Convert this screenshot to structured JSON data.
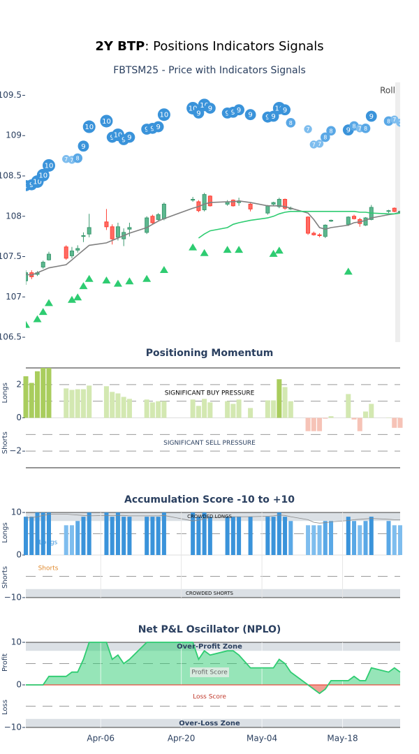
{
  "title": {
    "bold": "2Y BTP",
    "rest": ": Positions Indicators Signals"
  },
  "chart_data": [
    {
      "type": "candlestick",
      "title": "FBTSM25 - Price with Indicators Signals",
      "x": [
        "Mar-24",
        "Mar-25",
        "Mar-26",
        "Mar-27",
        "Mar-28",
        "Mar-31",
        "Apr-01",
        "Apr-02",
        "Apr-03",
        "Apr-04",
        "Apr-07",
        "Apr-08",
        "Apr-09",
        "Apr-10",
        "Apr-11",
        "Apr-14",
        "Apr-15",
        "Apr-16",
        "Apr-17",
        "Apr-22",
        "Apr-23",
        "Apr-24",
        "Apr-25",
        "Apr-28",
        "Apr-29",
        "Apr-30",
        "May-02",
        "May-05",
        "May-06",
        "May-07",
        "May-08",
        "May-09",
        "May-12",
        "May-13",
        "May-14",
        "May-15",
        "May-16",
        "May-19",
        "May-20",
        "May-21",
        "May-22",
        "May-23",
        "May-26",
        "May-27",
        "May-28"
      ],
      "open": [
        107.2,
        107.3,
        107.28,
        107.37,
        107.46,
        107.62,
        107.51,
        107.58,
        107.75,
        107.78,
        107.93,
        107.87,
        107.74,
        107.72,
        107.84,
        107.8,
        108.0,
        107.96,
        107.97,
        108.2,
        108.18,
        108.08,
        108.25,
        108.15,
        108.2,
        108.17,
        108.15,
        108.04,
        108.15,
        108.12,
        108.21,
        108.09,
        107.99,
        107.79,
        107.77,
        107.75,
        107.94,
        107.9,
        108.0,
        107.96,
        107.89,
        107.96,
        108.06,
        108.1,
        108.05
      ],
      "high": [
        107.33,
        107.33,
        107.32,
        107.45,
        107.56,
        107.64,
        107.62,
        107.64,
        107.8,
        108.03,
        108.09,
        107.9,
        107.92,
        107.85,
        107.92,
        108.0,
        108.02,
        108.04,
        108.17,
        108.24,
        108.2,
        108.29,
        108.26,
        108.2,
        108.21,
        108.23,
        108.17,
        108.14,
        108.18,
        108.23,
        108.22,
        108.12,
        108.0,
        107.81,
        107.79,
        107.9,
        107.96,
        108.0,
        108.02,
        107.98,
        107.99,
        108.14,
        108.08,
        108.11,
        108.07
      ],
      "low": [
        107.15,
        107.22,
        107.26,
        107.35,
        107.45,
        107.46,
        107.48,
        107.55,
        107.68,
        107.74,
        107.83,
        107.65,
        107.7,
        107.63,
        107.75,
        107.78,
        107.9,
        107.94,
        107.95,
        108.18,
        108.05,
        108.06,
        108.12,
        108.13,
        108.12,
        108.13,
        108.06,
        108.02,
        108.13,
        108.1,
        108.08,
        108.08,
        107.77,
        107.76,
        107.74,
        107.73,
        107.93,
        107.88,
        107.96,
        107.87,
        107.88,
        107.95,
        108.04,
        108.05,
        108.04
      ],
      "close": [
        107.3,
        107.25,
        107.3,
        107.43,
        107.53,
        107.48,
        107.57,
        107.6,
        107.76,
        107.86,
        107.87,
        107.72,
        107.87,
        107.8,
        107.86,
        107.98,
        107.92,
        108.02,
        108.15,
        108.21,
        108.07,
        108.27,
        108.13,
        108.18,
        108.13,
        108.19,
        108.09,
        108.13,
        108.17,
        108.21,
        108.1,
        108.1,
        107.79,
        107.77,
        107.76,
        107.89,
        107.95,
        107.99,
        107.97,
        107.91,
        107.98,
        108.11,
        108.07,
        108.06,
        108.06
      ],
      "increasing_color": "#3d9970",
      "decreasing_color": "#ff4136",
      "lines": [
        {
          "color": "#808080",
          "values": [
            107.28,
            107.27,
            107.3,
            107.33,
            107.36,
            107.4,
            107.46,
            107.52,
            107.58,
            107.64,
            107.67,
            107.7,
            107.73,
            107.76,
            107.79,
            107.86,
            107.9,
            107.94,
            107.97,
            108.1,
            108.12,
            108.15,
            108.17,
            108.18,
            108.18,
            108.19,
            108.17,
            108.13,
            108.13,
            108.13,
            108.12,
            108.1,
            108.04,
            107.96,
            107.86,
            107.84,
            107.86,
            107.89,
            107.92,
            107.93,
            107.95,
            107.98,
            108.02,
            108.03,
            108.05
          ]
        },
        {
          "color": "#2ecc71",
          "values": [
            null,
            null,
            null,
            null,
            null,
            null,
            null,
            null,
            null,
            null,
            null,
            null,
            null,
            null,
            null,
            null,
            null,
            null,
            null,
            null,
            107.73,
            107.78,
            107.82,
            107.86,
            107.9,
            107.92,
            107.95,
            107.98,
            108.0,
            108.03,
            108.05,
            108.06,
            108.06,
            108.06,
            108.06,
            108.06,
            108.06,
            108.06,
            108.06,
            108.05,
            108.05,
            108.04,
            108.03,
            108.03,
            108.04
          ]
        }
      ],
      "bubbles": {
        "values": [
          108.38,
          108.39,
          108.43,
          108.51,
          108.63,
          108.71,
          108.7,
          108.72,
          108.87,
          109.11,
          109.18,
          108.98,
          109.01,
          108.95,
          108.98,
          109.08,
          109.09,
          109.11,
          109.26,
          109.34,
          109.28,
          109.38,
          109.34,
          109.28,
          109.29,
          109.32,
          109.26,
          109.23,
          109.24,
          109.34,
          109.32,
          109.16,
          109.08,
          108.89,
          108.9,
          108.98,
          109.06,
          109.07,
          109.12,
          109.09,
          109.09,
          109.24,
          109.18,
          109.2,
          109.16
        ],
        "size": [
          9,
          9,
          10,
          10,
          10,
          7,
          7,
          8,
          9,
          10,
          10,
          9,
          10,
          9,
          9,
          9,
          9,
          9,
          10,
          10,
          9,
          10,
          9,
          9,
          9,
          9,
          9,
          9,
          9,
          10,
          9,
          8,
          7,
          7,
          7,
          8,
          8,
          9,
          8,
          7,
          8,
          9,
          8,
          7,
          7
        ],
        "colors": [
          "#3a93da",
          "#3a93da",
          "#3a93da",
          "#3a93da",
          "#3a93da",
          "#7ebdee",
          "#7ebdee",
          "#5aa8e6",
          "#3a93da",
          "#3a93da",
          "#3a93da",
          "#3a93da",
          "#3a93da",
          "#3a93da",
          "#3a93da",
          "#3a93da",
          "#3a93da",
          "#3a93da",
          "#3a93da",
          "#3a93da",
          "#3a93da",
          "#3a93da",
          "#3a93da",
          "#3a93da",
          "#3a93da",
          "#3a93da",
          "#3a93da",
          "#3a93da",
          "#3a93da",
          "#3a93da",
          "#3a93da",
          "#5aa8e6",
          "#7ebdee",
          "#7ebdee",
          "#7ebdee",
          "#5aa8e6",
          "#5aa8e6",
          "#3a93da",
          "#5aa8e6",
          "#7ebdee",
          "#5aa8e6",
          "#3a93da",
          "#5aa8e6",
          "#7ebdee",
          "#7ebdee"
        ]
      },
      "triangles": {
        "color": "#2ecc71",
        "values": [
          106.66,
          null,
          106.73,
          106.82,
          106.93,
          null,
          106.97,
          107.0,
          107.14,
          107.23,
          107.21,
          null,
          107.17,
          null,
          107.2,
          107.23,
          null,
          null,
          107.34,
          107.62,
          null,
          107.55,
          null,
          107.59,
          null,
          107.59,
          null,
          null,
          107.54,
          107.58,
          null,
          null,
          null,
          null,
          null,
          null,
          null,
          107.32,
          null,
          null,
          null,
          null,
          null,
          null,
          null
        ]
      },
      "annotation": {
        "text": "Roll",
        "x": "May-28"
      },
      "xlim": [
        "Mar-24",
        "May-28"
      ],
      "ylim": [
        106.44,
        109.66
      ],
      "yticks": [
        106.5,
        107,
        107.5,
        108,
        108.5,
        109,
        109.5
      ]
    },
    {
      "type": "bar",
      "title": "Positioning Momentum",
      "y_titles": [
        "Longs",
        "Shorts"
      ],
      "x": [
        "Mar-24",
        "Mar-25",
        "Mar-26",
        "Mar-27",
        "Mar-28",
        "Mar-31",
        "Apr-01",
        "Apr-02",
        "Apr-03",
        "Apr-04",
        "Apr-07",
        "Apr-08",
        "Apr-09",
        "Apr-10",
        "Apr-11",
        "Apr-14",
        "Apr-15",
        "Apr-16",
        "Apr-17",
        "Apr-22",
        "Apr-23",
        "Apr-24",
        "Apr-25",
        "Apr-28",
        "Apr-29",
        "Apr-30",
        "May-02",
        "May-05",
        "May-06",
        "May-07",
        "May-08",
        "May-09",
        "May-12",
        "May-13",
        "May-14",
        "May-15",
        "May-16",
        "May-19",
        "May-20",
        "May-21",
        "May-22",
        "May-23",
        "May-26",
        "May-27",
        "May-28"
      ],
      "values": [
        2.5,
        2.1,
        2.8,
        3.0,
        3.0,
        1.77,
        1.68,
        1.72,
        1.72,
        1.94,
        1.9,
        1.56,
        1.47,
        1.26,
        1.14,
        1.1,
        0.93,
        1.0,
        1.0,
        1.1,
        0.72,
        1.14,
        0.93,
        1.0,
        0.84,
        1.1,
        0.59,
        1.05,
        1.05,
        2.32,
        1.85,
        1.0,
        -0.8,
        -0.8,
        -0.8,
        -0.05,
        0.1,
        1.43,
        -0.1,
        -0.8,
        0.38,
        0.84,
        0.02,
        -0.6,
        -0.6
      ],
      "colors": [
        "#a9cd5d",
        "#a9cd5d",
        "#a9cd5d",
        "#a9cd5d",
        "#a9cd5d",
        "#d3e8b1",
        "#d3e8b1",
        "#d3e8b1",
        "#d3e8b1",
        "#d3e8b1",
        "#d3e8b1",
        "#d3e8b1",
        "#d3e8b1",
        "#d3e8b1",
        "#d3e8b1",
        "#d3e8b1",
        "#d3e8b1",
        "#d3e8b1",
        "#d3e8b1",
        "#d3e8b1",
        "#d3e8b1",
        "#d3e8b1",
        "#d3e8b1",
        "#d3e8b1",
        "#d3e8b1",
        "#d3e8b1",
        "#d3e8b1",
        "#d3e8b1",
        "#d3e8b1",
        "#a9cd5d",
        "#d3e8b1",
        "#d3e8b1",
        "#f6c3b7",
        "#f6c3b7",
        "#f6c3b7",
        "#f6c3b7",
        "#d3e8b1",
        "#d3e8b1",
        "#f6c3b7",
        "#f6c3b7",
        "#d3e8b1",
        "#d3e8b1",
        "#d3e8b1",
        "#f6c3b7",
        "#f6c3b7"
      ],
      "solid_lines": [
        3,
        -3
      ],
      "dashed_lines": [
        2,
        1,
        -1,
        -2
      ],
      "labels": {
        "buy": "SIGNIFICANT BUY PRESSURE",
        "sell": "SIGNIFICANT SELL PRESSURE"
      },
      "xlim": [
        "Mar-24",
        "May-28"
      ],
      "ylim": [
        -3,
        3
      ],
      "yticks": [
        {
          "value": -2,
          "label": "−2"
        },
        0,
        2
      ]
    },
    {
      "type": "bar",
      "title": "Accumulation Score -10 to +10",
      "y_titles": [
        "Longs",
        "Shorts"
      ],
      "x": [
        "Mar-24",
        "Mar-25",
        "Mar-26",
        "Mar-27",
        "Mar-28",
        "Mar-31",
        "Apr-01",
        "Apr-02",
        "Apr-03",
        "Apr-04",
        "Apr-07",
        "Apr-08",
        "Apr-09",
        "Apr-10",
        "Apr-11",
        "Apr-14",
        "Apr-15",
        "Apr-16",
        "Apr-17",
        "Apr-22",
        "Apr-23",
        "Apr-24",
        "Apr-25",
        "Apr-28",
        "Apr-29",
        "Apr-30",
        "May-02",
        "May-05",
        "May-06",
        "May-07",
        "May-08",
        "May-09",
        "May-12",
        "May-13",
        "May-14",
        "May-15",
        "May-16",
        "May-19",
        "May-20",
        "May-21",
        "May-22",
        "May-23",
        "May-26",
        "May-27",
        "May-28"
      ],
      "values": [
        9,
        9,
        10,
        10,
        10,
        7,
        7,
        8,
        9,
        10,
        10,
        9,
        10,
        9,
        9,
        9,
        9,
        9,
        10,
        10,
        9,
        10,
        9,
        9,
        9,
        9,
        9,
        9,
        9,
        10,
        9,
        8,
        7,
        7,
        7,
        8,
        8,
        9,
        8,
        7,
        8,
        9,
        8,
        7,
        7
      ],
      "colors": [
        "#3a93da",
        "#3a93da",
        "#3a93da",
        "#3a93da",
        "#3a93da",
        "#7ebdee",
        "#7ebdee",
        "#5aa8e6",
        "#3a93da",
        "#3a93da",
        "#3a93da",
        "#3a93da",
        "#3a93da",
        "#3a93da",
        "#3a93da",
        "#3a93da",
        "#3a93da",
        "#3a93da",
        "#3a93da",
        "#3a93da",
        "#3a93da",
        "#3a93da",
        "#3a93da",
        "#3a93da",
        "#3a93da",
        "#3a93da",
        "#3a93da",
        "#3a93da",
        "#3a93da",
        "#3a93da",
        "#3a93da",
        "#5aa8e6",
        "#7ebdee",
        "#7ebdee",
        "#7ebdee",
        "#5aa8e6",
        "#5aa8e6",
        "#3a93da",
        "#5aa8e6",
        "#7ebdee",
        "#5aa8e6",
        "#3a93da",
        "#5aa8e6",
        "#7ebdee",
        "#7ebdee"
      ],
      "trend": {
        "color": "#8a8a8a",
        "values": [
          8.7,
          8.8,
          9.0,
          9.3,
          9.6,
          9.6,
          9.5,
          9.4,
          9.3,
          9.2,
          9.3,
          9.3,
          9.3,
          9.3,
          9.2,
          9.2,
          9.2,
          9.2,
          9.3,
          8.0,
          8.2,
          8.6,
          8.8,
          9.0,
          9.0,
          9.0,
          9.0,
          9.1,
          9.2,
          9.4,
          9.3,
          9.0,
          8.3,
          7.7,
          7.5,
          7.6,
          7.8,
          8.1,
          8.3,
          8.4,
          8.5,
          8.6,
          8.4,
          8.3,
          8.3
        ]
      },
      "zones": [
        {
          "label": "CROWDED LONGS",
          "from": 8,
          "to": 10
        },
        {
          "label": "CROWDED SHORTS",
          "from": -10,
          "to": -8
        }
      ],
      "solid_lines": [
        10,
        -10
      ],
      "dashed_lines": [
        5,
        -5
      ],
      "annotations": [
        {
          "text": "Longs",
          "color": "#3a93da"
        },
        {
          "text": "Shorts",
          "color": "#e08a2e"
        }
      ],
      "xlim": [
        "Mar-24",
        "May-28"
      ],
      "ylim": [
        -10.5,
        10.5
      ],
      "yticks": [
        {
          "value": -10,
          "label": "−10"
        },
        0,
        10
      ]
    },
    {
      "type": "area",
      "title": "Net P&L Oscillator (NPLO)",
      "y_titles": [
        "Profit",
        "Loss"
      ],
      "x": [
        "Mar-24",
        "Mar-25",
        "Mar-26",
        "Mar-27",
        "Mar-28",
        "Mar-31",
        "Apr-01",
        "Apr-02",
        "Apr-03",
        "Apr-04",
        "Apr-07",
        "Apr-08",
        "Apr-09",
        "Apr-10",
        "Apr-11",
        "Apr-14",
        "Apr-15",
        "Apr-16",
        "Apr-17",
        "Apr-22",
        "Apr-23",
        "Apr-24",
        "Apr-25",
        "Apr-28",
        "Apr-29",
        "Apr-30",
        "May-02",
        "May-05",
        "May-06",
        "May-07",
        "May-08",
        "May-09",
        "May-12",
        "May-13",
        "May-14",
        "May-15",
        "May-16",
        "May-19",
        "May-20",
        "May-21",
        "May-22",
        "May-23",
        "May-26",
        "May-27",
        "May-28"
      ],
      "values": [
        0,
        0,
        0,
        0,
        2,
        2,
        3,
        3,
        6,
        10,
        10,
        6,
        7,
        5,
        6,
        10,
        10,
        10,
        10,
        10,
        6,
        8,
        7,
        8,
        8,
        7,
        4,
        4,
        4,
        6,
        5,
        3,
        0,
        -1,
        -2,
        -1,
        1,
        1,
        2,
        1,
        1,
        4,
        3,
        4,
        3
      ],
      "color": "#2ecc71",
      "negative_color": "#e74c3c",
      "zones": [
        {
          "label": "Over-Profit Zone",
          "from": 8,
          "to": 10
        },
        {
          "label": "Over-Loss Zone",
          "from": -10,
          "to": -8
        }
      ],
      "solid_lines": [
        10,
        -10
      ],
      "dashed_lines": [
        5,
        -5
      ],
      "labels": {
        "profit": "Profit Score",
        "loss": "Loss Score"
      },
      "xlim": [
        "Mar-24",
        "May-28"
      ],
      "xticks": [
        "Apr-06",
        "Apr-20",
        "May-04",
        "May-18"
      ],
      "ylim": [
        -10.5,
        10.5
      ],
      "yticks": [
        {
          "value": -10,
          "label": "−10"
        },
        0,
        10
      ]
    }
  ]
}
